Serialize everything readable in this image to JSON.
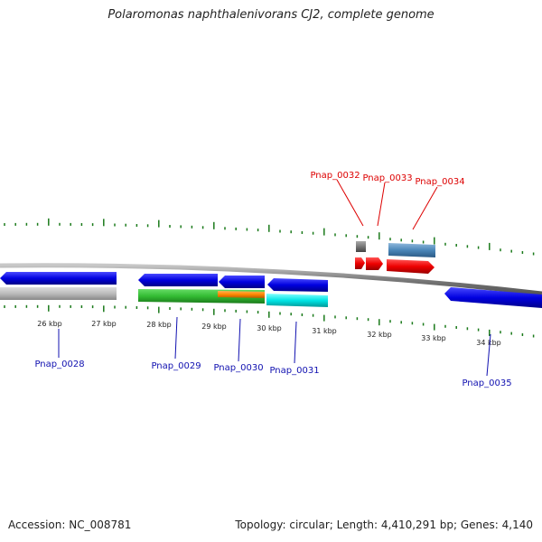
{
  "title": "Polaromonas naphthalenivorans CJ2, complete genome",
  "accession": "Accession: NC_008781",
  "topology": "Topology: circular; Length: 4,410,291 bp; Genes: 4,140",
  "colors": {
    "backbone": "#8a8a8a",
    "tick": "#1a7a1a",
    "label_blue": "#1010b0",
    "label_red": "#dd0000",
    "gene_blue": "#0000dd",
    "gene_red": "#ee0000",
    "gene_green": "#33bb33",
    "gene_orange": "#ff8800",
    "gene_cyan": "#00e5e5",
    "gene_gray": "#bbbbbb",
    "gene_steel": "#4a86b8",
    "gene_darkgray": "#777777"
  },
  "kbp_labels": [
    "26 kbp",
    "27 kbp",
    "28 kbp",
    "29 kbp",
    "30 kbp",
    "31 kbp",
    "32 kbp",
    "33 kbp",
    "34 kbp"
  ],
  "genes_bottom": [
    "Pnap_0028",
    "Pnap_0029",
    "Pnap_0030",
    "Pnap_0031",
    "Pnap_0035"
  ],
  "genes_top": [
    "Pnap_0032",
    "Pnap_0033",
    "Pnap_0034"
  ]
}
